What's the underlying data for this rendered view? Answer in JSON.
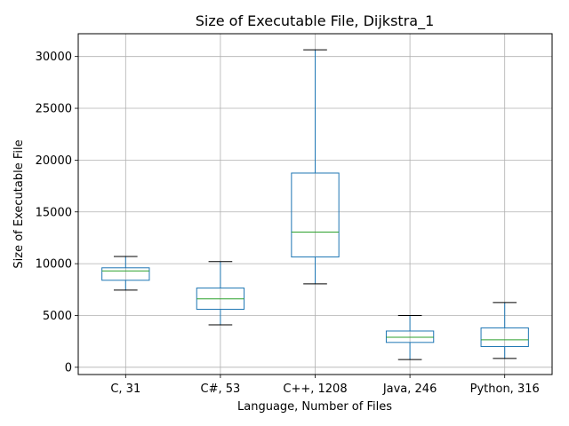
{
  "chart_data": {
    "type": "box",
    "title": "Size of Executable File, Dijkstra_1",
    "xlabel": "Language, Number of Files",
    "ylabel": "Size of Executable File",
    "categories": [
      "C, 31",
      "C#, 53",
      "C++, 1208",
      "Java, 246",
      "Python, 316"
    ],
    "boxes": [
      {
        "whisker_low": 7450,
        "q1": 8400,
        "median": 9300,
        "q3": 9600,
        "whisker_high": 10700
      },
      {
        "whisker_low": 4100,
        "q1": 5600,
        "median": 6600,
        "q3": 7650,
        "whisker_high": 10200
      },
      {
        "whisker_low": 8050,
        "q1": 10650,
        "median": 13050,
        "q3": 18750,
        "whisker_high": 30650
      },
      {
        "whisker_low": 750,
        "q1": 2400,
        "median": 2900,
        "q3": 3500,
        "whisker_high": 5000
      },
      {
        "whisker_low": 850,
        "q1": 2000,
        "median": 2650,
        "q3": 3800,
        "whisker_high": 6250
      }
    ],
    "ylim": [
      -700,
      32200
    ],
    "yticks": [
      0,
      5000,
      10000,
      15000,
      20000,
      25000,
      30000
    ],
    "yticklabels": [
      "0",
      "5000",
      "10000",
      "15000",
      "20000",
      "25000",
      "30000"
    ],
    "grid": true,
    "colors": {
      "box": "#1f77b4",
      "median": "#2ca02c",
      "whisker_cap": "#000000",
      "grid": "#b0b0b0"
    }
  }
}
